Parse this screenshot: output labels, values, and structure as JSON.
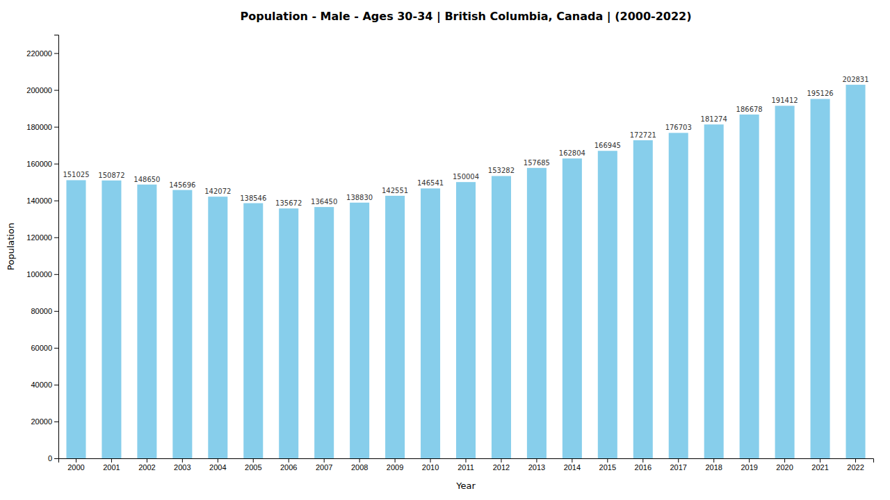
{
  "chart_data": {
    "type": "bar",
    "title": "Population - Male - Ages 30-34 | British Columbia, Canada |  (2000-2022)",
    "xlabel": "Year",
    "ylabel": "Population",
    "categories": [
      "2000",
      "2001",
      "2002",
      "2003",
      "2004",
      "2005",
      "2006",
      "2007",
      "2008",
      "2009",
      "2010",
      "2011",
      "2012",
      "2013",
      "2014",
      "2015",
      "2016",
      "2017",
      "2018",
      "2019",
      "2020",
      "2021",
      "2022"
    ],
    "values": [
      151025,
      150872,
      148650,
      145696,
      142072,
      138546,
      135672,
      136450,
      138830,
      142551,
      146541,
      150004,
      153282,
      157685,
      162804,
      166945,
      172721,
      176703,
      181274,
      186678,
      191412,
      195126,
      202831
    ],
    "color": "#87CEEB",
    "ylim": [
      0,
      230000
    ],
    "yticks": [
      0,
      20000,
      40000,
      60000,
      80000,
      100000,
      120000,
      140000,
      160000,
      180000,
      200000,
      220000
    ],
    "grid": false,
    "data_labels": true
  }
}
